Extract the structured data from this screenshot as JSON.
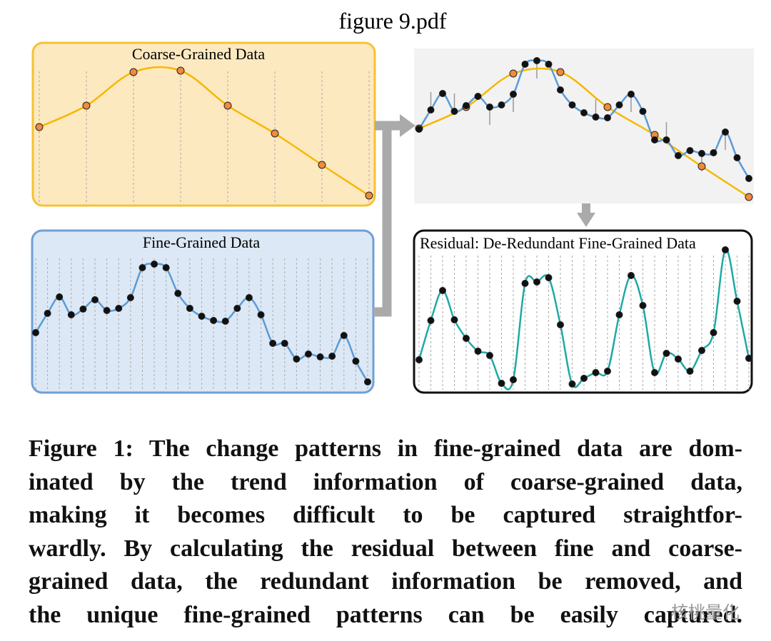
{
  "header": {
    "title": "figure 9.pdf"
  },
  "panels": {
    "coarse": "Coarse-Grained Data",
    "fine": "Fine-Grained Data",
    "residual": "Residual: De-Redundant Fine-Grained Data"
  },
  "caption": {
    "lines": [
      "Figure 1: The change patterns in fine-grained data are dom-",
      "inated by the trend information of coarse-grained data,",
      "making it becomes difficult to be captured straightfor-",
      "wardly. By calculating the residual between fine and coarse-",
      "grained data, the redundant information be removed, and",
      "the unique fine-grained patterns can be easily captured."
    ]
  },
  "watermark": "核桃量化"
}
